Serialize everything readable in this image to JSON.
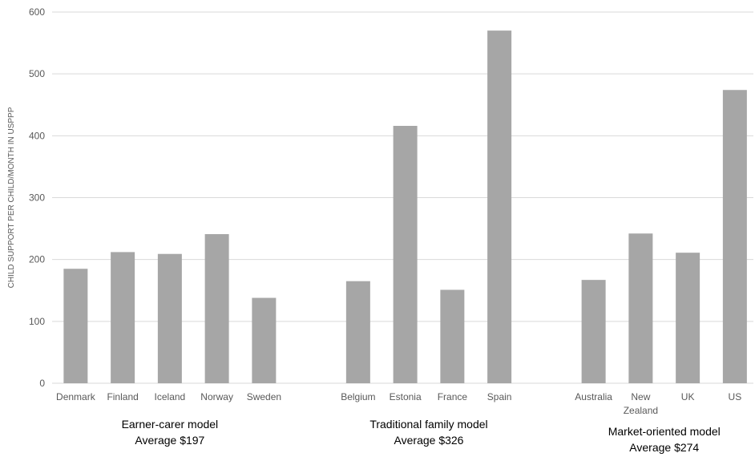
{
  "chart_data": {
    "type": "bar",
    "ylabel": "CHILD SUPPORT PER CHILD/MONTH IN USPPP",
    "ylim": [
      0,
      600
    ],
    "yticks": [
      0,
      100,
      200,
      300,
      400,
      500,
      600
    ],
    "grid": true,
    "bar_color": "#a6a6a6",
    "groups": [
      {
        "label": "Earner-carer model",
        "average": "Average $197",
        "categories": [
          [
            "Denmark"
          ],
          [
            "Finland"
          ],
          [
            "Iceland"
          ],
          [
            "Norway"
          ],
          [
            "Sweden"
          ]
        ],
        "values": [
          185,
          212,
          209,
          241,
          138
        ]
      },
      {
        "label": "Traditional family model",
        "average": "Average $326",
        "categories": [
          [
            "Belgium"
          ],
          [
            "Estonia"
          ],
          [
            "France"
          ],
          [
            "Spain"
          ]
        ],
        "values": [
          165,
          416,
          151,
          570
        ]
      },
      {
        "label": "Market-oriented model",
        "average": "Average $274",
        "categories": [
          [
            "Australia"
          ],
          [
            "New",
            "Zealand"
          ],
          [
            "UK"
          ],
          [
            "US"
          ]
        ],
        "values": [
          167,
          242,
          211,
          474
        ]
      }
    ]
  }
}
